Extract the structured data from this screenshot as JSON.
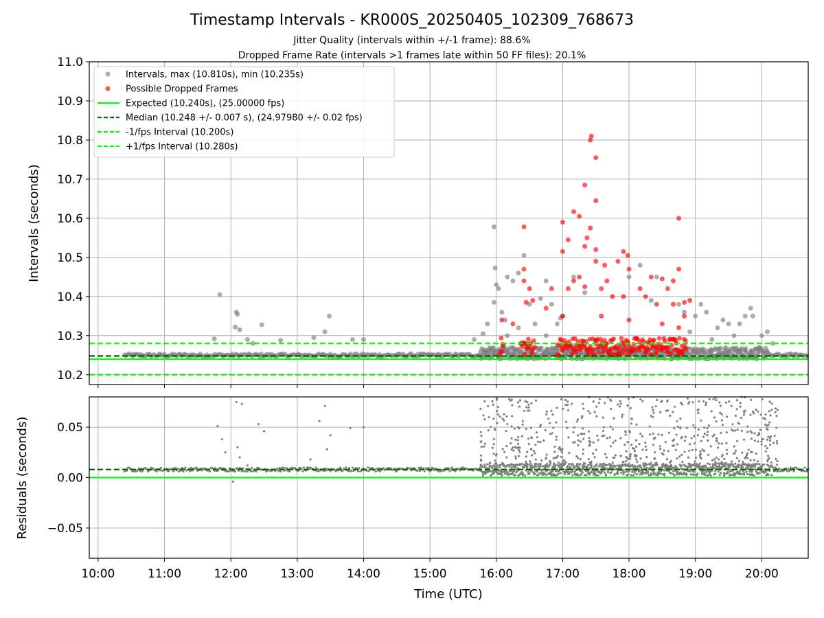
{
  "figure": {
    "title": "Timestamp Intervals - KR000S_20250405_102309_768673",
    "subtitle1": "Jitter Quality (intervals within +/-1 frame): 88.6%",
    "subtitle2": "Dropped Frame Rate (intervals >1 frames late within 50 FF files): 20.1%"
  },
  "colors": {
    "intervals": "#808080",
    "dropped": "#ff0000",
    "expected": "#00ff00",
    "median": "#006400",
    "bound": "#00ff00",
    "grid": "#b0b0b0"
  },
  "chart_data": [
    {
      "type": "scatter",
      "ylabel": "Intervals (seconds)",
      "ylim": [
        10.175,
        11.0
      ],
      "yticks": [
        "10.2",
        "10.3",
        "10.4",
        "10.5",
        "10.6",
        "10.7",
        "10.8",
        "10.9",
        "11.0"
      ],
      "xlim": [
        "09:52",
        "20:42"
      ],
      "grid": true,
      "legend_position": "upper-left",
      "legend": [
        {
          "label": "Intervals, max (10.810s), min (10.235s)",
          "marker": "gray-dot"
        },
        {
          "label": "Possible Dropped Frames",
          "marker": "red-dot"
        },
        {
          "label": "Expected (10.240s), (25.00000 fps)",
          "marker": "green-solid"
        },
        {
          "label": "Median (10.248 +/- 0.007 s), (24.97980 +/- 0.02 fps)",
          "marker": "darkgreen-dashed"
        },
        {
          "label": "-1/fps Interval (10.200s)",
          "marker": "green-dashed"
        },
        {
          "label": "+1/fps Interval (10.280s)",
          "marker": "green-dashed"
        }
      ],
      "reference_lines": [
        {
          "name": "expected",
          "y": 10.24,
          "style": "solid"
        },
        {
          "name": "median",
          "y": 10.248,
          "style": "dashed"
        },
        {
          "name": "minus_1_fps",
          "y": 10.2,
          "style": "dashed"
        },
        {
          "name": "plus_1_fps",
          "y": 10.28,
          "style": "dashed"
        }
      ],
      "series": [
        {
          "name": "Intervals",
          "points": [
            [
              "11:50",
              10.405
            ],
            [
              "12:05",
              10.36
            ],
            [
              "12:06",
              10.355
            ],
            [
              "12:04",
              10.322
            ],
            [
              "12:08",
              10.315
            ],
            [
              "12:28",
              10.328
            ],
            [
              "12:15",
              10.29
            ],
            [
              "12:45",
              10.288
            ],
            [
              "13:15",
              10.295
            ],
            [
              "13:25",
              10.31
            ],
            [
              "13:29",
              10.35
            ],
            [
              "13:50",
              10.29
            ],
            [
              "14:00",
              10.29
            ],
            [
              "11:45",
              10.292
            ],
            [
              "12:20",
              10.28
            ],
            [
              "15:40",
              10.29
            ],
            [
              "15:48",
              10.305
            ],
            [
              "15:52",
              10.33
            ],
            [
              "15:58",
              10.578
            ],
            [
              "15:59",
              10.473
            ],
            [
              "16:00",
              10.43
            ],
            [
              "16:02",
              10.42
            ],
            [
              "15:58",
              10.385
            ],
            [
              "16:05",
              10.36
            ],
            [
              "16:08",
              10.34
            ],
            [
              "16:10",
              10.45
            ],
            [
              "16:15",
              10.44
            ],
            [
              "16:20",
              10.46
            ],
            [
              "16:25",
              10.505
            ],
            [
              "16:30",
              10.38
            ],
            [
              "16:35",
              10.33
            ],
            [
              "16:40",
              10.395
            ],
            [
              "16:45",
              10.44
            ],
            [
              "16:50",
              10.38
            ],
            [
              "16:55",
              10.33
            ],
            [
              "17:00",
              10.35
            ],
            [
              "16:58",
              10.345
            ],
            [
              "17:10",
              10.45
            ],
            [
              "17:20",
              10.41
            ],
            [
              "16:45",
              10.3
            ],
            [
              "16:10",
              10.3
            ],
            [
              "16:20",
              10.32
            ],
            [
              "18:00",
              10.45
            ],
            [
              "18:10",
              10.48
            ],
            [
              "18:20",
              10.39
            ],
            [
              "18:25",
              10.45
            ],
            [
              "18:45",
              10.38
            ],
            [
              "18:50",
              10.36
            ],
            [
              "19:00",
              10.35
            ],
            [
              "19:05",
              10.38
            ],
            [
              "19:10",
              10.36
            ],
            [
              "19:20",
              10.32
            ],
            [
              "19:25",
              10.34
            ],
            [
              "19:30",
              10.33
            ],
            [
              "19:40",
              10.33
            ],
            [
              "19:45",
              10.35
            ],
            [
              "19:50",
              10.37
            ],
            [
              "19:52",
              10.35
            ],
            [
              "20:00",
              10.3
            ],
            [
              "20:05",
              10.31
            ],
            [
              "20:10",
              10.28
            ],
            [
              "19:35",
              10.3
            ],
            [
              "19:15",
              10.29
            ],
            [
              "18:55",
              10.31
            ]
          ]
        },
        {
          "name": "Possible Dropped Frames",
          "points": [
            [
              "17:26",
              10.81
            ],
            [
              "17:25",
              10.8
            ],
            [
              "17:30",
              10.755
            ],
            [
              "17:20",
              10.685
            ],
            [
              "17:30",
              10.645
            ],
            [
              "17:10",
              10.617
            ],
            [
              "17:15",
              10.605
            ],
            [
              "17:25",
              10.575
            ],
            [
              "17:00",
              10.59
            ],
            [
              "17:05",
              10.545
            ],
            [
              "17:22",
              10.55
            ],
            [
              "17:20",
              10.528
            ],
            [
              "17:30",
              10.52
            ],
            [
              "17:30",
              10.49
            ],
            [
              "17:38",
              10.48
            ],
            [
              "17:50",
              10.49
            ],
            [
              "17:00",
              10.515
            ],
            [
              "17:55",
              10.515
            ],
            [
              "17:59",
              10.505
            ],
            [
              "18:00",
              10.47
            ],
            [
              "18:45",
              10.6
            ],
            [
              "18:45",
              10.47
            ],
            [
              "18:40",
              10.44
            ],
            [
              "18:20",
              10.45
            ],
            [
              "18:30",
              10.445
            ],
            [
              "18:35",
              10.42
            ],
            [
              "18:50",
              10.385
            ],
            [
              "18:40",
              10.38
            ],
            [
              "16:25",
              10.578
            ],
            [
              "16:25",
              10.47
            ],
            [
              "16:25",
              10.44
            ],
            [
              "16:30",
              10.42
            ],
            [
              "16:33",
              10.39
            ],
            [
              "16:27",
              10.385
            ],
            [
              "16:45",
              10.37
            ],
            [
              "16:50",
              10.42
            ],
            [
              "17:05",
              10.42
            ],
            [
              "17:10",
              10.44
            ],
            [
              "17:15",
              10.45
            ],
            [
              "17:20",
              10.425
            ],
            [
              "17:35",
              10.42
            ],
            [
              "17:40",
              10.44
            ],
            [
              "17:45",
              10.4
            ],
            [
              "17:55",
              10.4
            ],
            [
              "18:10",
              10.42
            ],
            [
              "18:15",
              10.4
            ],
            [
              "18:25",
              10.38
            ],
            [
              "18:55",
              10.39
            ],
            [
              "16:05",
              10.34
            ],
            [
              "16:15",
              10.33
            ],
            [
              "17:00",
              10.35
            ],
            [
              "17:35",
              10.35
            ],
            [
              "18:00",
              10.34
            ],
            [
              "18:30",
              10.33
            ],
            [
              "18:45",
              10.32
            ],
            [
              "18:50",
              10.35
            ]
          ]
        }
      ],
      "dense_band": {
        "from": "10:24",
        "to": "20:42",
        "y_center": 10.25
      }
    },
    {
      "type": "scatter",
      "xlabel": "Time (UTC)",
      "ylabel": "Residuals (seconds)",
      "ylim": [
        -0.08,
        0.08
      ],
      "yticks": [
        "−0.05",
        "0.00",
        "0.05"
      ],
      "ytick_values": [
        -0.05,
        0.0,
        0.05
      ],
      "xticks": [
        "10:00",
        "11:00",
        "12:00",
        "13:00",
        "14:00",
        "15:00",
        "16:00",
        "17:00",
        "18:00",
        "19:00",
        "20:00"
      ],
      "grid": true,
      "reference_lines": [
        {
          "name": "zero",
          "y": 0.0,
          "style": "solid"
        },
        {
          "name": "median",
          "y": 0.008,
          "style": "dashed"
        }
      ],
      "series": [
        {
          "name": "Residuals",
          "points": [
            [
              "11:48",
              0.051
            ],
            [
              "11:52",
              0.038
            ],
            [
              "12:05",
              0.075
            ],
            [
              "12:10",
              0.073
            ],
            [
              "12:25",
              0.053
            ],
            [
              "12:30",
              0.046
            ],
            [
              "13:20",
              0.056
            ],
            [
              "13:25",
              0.071
            ],
            [
              "13:30",
              0.042
            ],
            [
              "13:48",
              0.049
            ],
            [
              "14:00",
              0.05
            ],
            [
              "12:06",
              0.03
            ],
            [
              "12:08",
              0.02
            ],
            [
              "12:02",
              -0.004
            ],
            [
              "11:55",
              0.025
            ],
            [
              "12:15",
              0.012
            ],
            [
              "13:12",
              0.018
            ],
            [
              "13:27",
              0.028
            ]
          ]
        }
      ],
      "scatter_band": {
        "from": "15:45",
        "to": "20:15",
        "y_min": 0.01,
        "y_max": 0.08
      }
    }
  ]
}
